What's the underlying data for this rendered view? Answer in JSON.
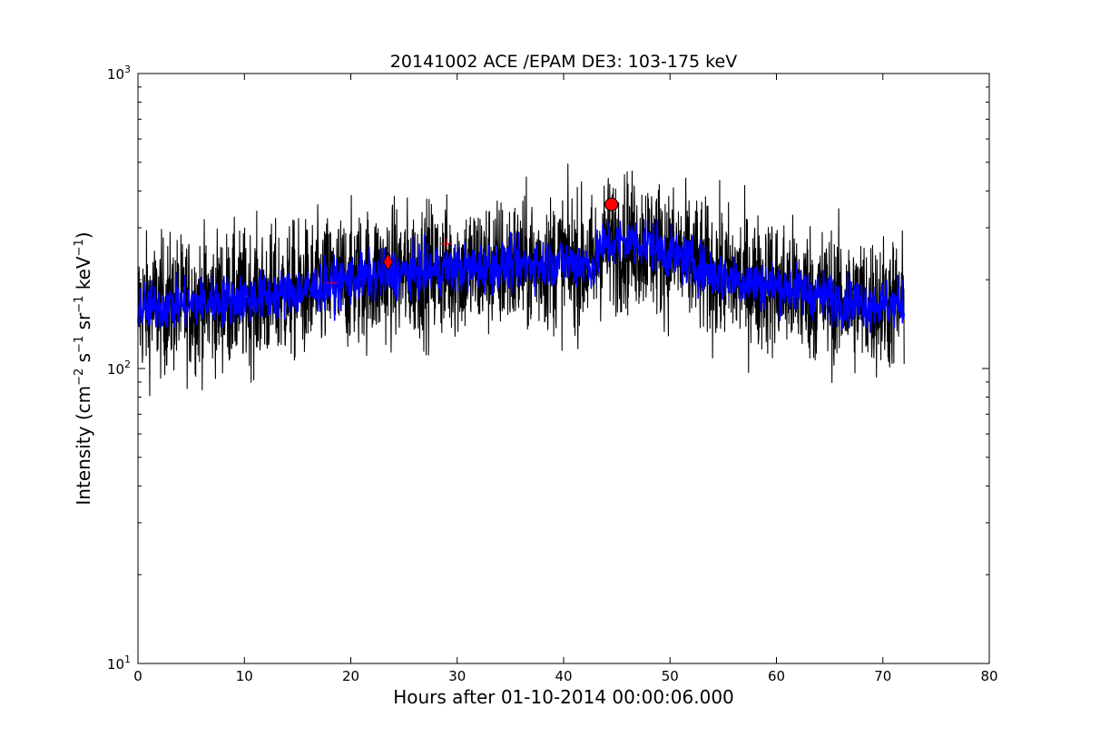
{
  "chart_data": {
    "type": "line",
    "title": "20141002 ACE /EPAM DE3: 103-175 keV",
    "xlabel": "Hours after 01-10-2014 00:00:06.000",
    "ylabel": "Intensity (cm⁻² s⁻¹ sr⁻¹ keV⁻¹)",
    "ylabel_parts": {
      "pre": "Intensity (cm",
      "e1": "−2",
      "s": " s",
      "e2": "−1",
      "sr": " sr",
      "e3": "−1",
      "kev": " keV",
      "e4": "−1",
      "post": ")"
    },
    "x_range": [
      0,
      80
    ],
    "y_range": [
      10,
      1000
    ],
    "y_scale": "log",
    "grid": false,
    "x_ticks": [
      0,
      10,
      20,
      30,
      40,
      50,
      60,
      70,
      80
    ],
    "y_ticks": [
      {
        "value": 10,
        "base": "10",
        "exp": "1"
      },
      {
        "value": 100,
        "base": "10",
        "exp": "2"
      },
      {
        "value": 1000,
        "base": "10",
        "exp": "3"
      }
    ],
    "series": [
      {
        "style": "noisy-band",
        "color": "#000000",
        "x": [
          0,
          4,
          8,
          12,
          16,
          20,
          24,
          28,
          32,
          36,
          40,
          43,
          43.5,
          46,
          48,
          50,
          54,
          58,
          62,
          66,
          70,
          72
        ],
        "y": [
          160,
          165,
          170,
          175,
          185,
          200,
          210,
          215,
          220,
          225,
          230,
          225,
          260,
          270,
          265,
          245,
          210,
          195,
          185,
          170,
          165,
          165
        ],
        "spread_factor": 1.3
      },
      {
        "style": "smoothed",
        "color": "#0000ff",
        "x": [
          0,
          4,
          8,
          12,
          16,
          20,
          24,
          28,
          32,
          36,
          40,
          43,
          43.5,
          46,
          48,
          50,
          54,
          58,
          62,
          66,
          70,
          72
        ],
        "y": [
          160,
          165,
          170,
          175,
          185,
          200,
          210,
          215,
          220,
          225,
          230,
          225,
          260,
          270,
          265,
          245,
          210,
          195,
          185,
          170,
          165,
          165
        ],
        "spread_factor": 1.1
      }
    ],
    "markers": [
      {
        "shape": "plus",
        "x": 18.2,
        "y": 195,
        "color": "#ff0000"
      },
      {
        "shape": "plus",
        "x": 29.0,
        "y": 265,
        "color": "#ff0000"
      },
      {
        "shape": "diamond",
        "x": 23.5,
        "y": 230,
        "color": "#ff0000"
      },
      {
        "shape": "circle",
        "x": 44.5,
        "y": 360,
        "color": "#ff0000"
      }
    ]
  }
}
